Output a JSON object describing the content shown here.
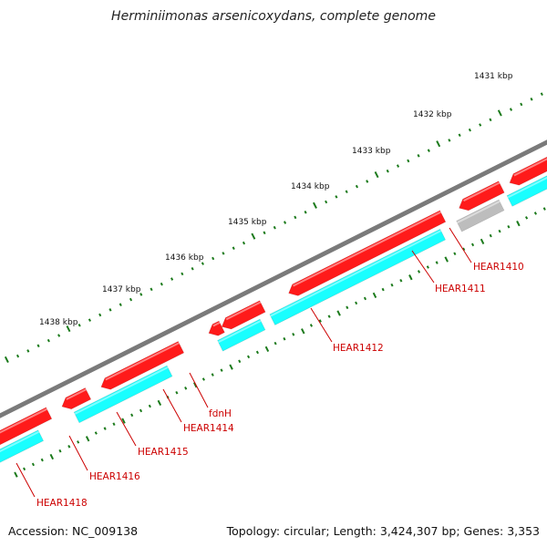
{
  "title": "Herminiimonas arsenicoxydans, complete genome",
  "footer": {
    "accession": "Accession: NC_009138",
    "topology": "Topology: circular; Length: 3,424,307 bp; Genes: 3,353"
  },
  "colors": {
    "backbone": "#7a7a7a",
    "gene": "#ff1a1a",
    "cds": "#19ffff",
    "pseudo": "#bdbdbd",
    "tick": "#1b7a1b",
    "label": "#cc0000"
  },
  "kbp_ticks": [
    {
      "kbp": 1431,
      "label": "1431 kbp"
    },
    {
      "kbp": 1432,
      "label": "1432 kbp"
    },
    {
      "kbp": 1433,
      "label": "1433 kbp"
    },
    {
      "kbp": 1434,
      "label": "1434 kbp"
    },
    {
      "kbp": 1435,
      "label": "1435 kbp"
    },
    {
      "kbp": 1436,
      "label": "1436 kbp"
    },
    {
      "kbp": 1437,
      "label": "1437 kbp"
    },
    {
      "kbp": 1438,
      "label": "1438 kbp"
    }
  ],
  "genes": [
    {
      "label": "HEAR1410"
    },
    {
      "label": "HEAR1411"
    },
    {
      "label": "HEAR1412"
    },
    {
      "label": "fdnH"
    },
    {
      "label": "HEAR1414"
    },
    {
      "label": "HEAR1415"
    },
    {
      "label": "HEAR1416"
    },
    {
      "label": "HEAR1418"
    }
  ]
}
